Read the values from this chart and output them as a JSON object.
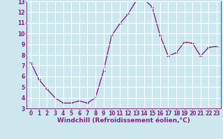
{
  "x": [
    0,
    1,
    2,
    3,
    4,
    5,
    6,
    7,
    8,
    9,
    10,
    11,
    12,
    13,
    14,
    15,
    16,
    17,
    18,
    19,
    20,
    21,
    22,
    23
  ],
  "y": [
    7.3,
    5.7,
    4.8,
    4.0,
    3.5,
    3.5,
    3.7,
    3.5,
    4.0,
    6.5,
    9.8,
    10.9,
    11.8,
    13.0,
    13.2,
    12.5,
    9.8,
    7.9,
    8.2,
    9.2,
    9.1,
    7.9,
    8.7,
    8.8
  ],
  "line_color": "#882288",
  "marker": "P",
  "marker_size": 2.5,
  "bg_color": "#cce8ee",
  "grid_color": "#b0d8e0",
  "xlabel": "Windchill (Refroidissement éolien,°C)",
  "xlabel_fontsize": 6.5,
  "tick_fontsize": 5.5,
  "ylim": [
    3,
    13
  ],
  "xlim": [
    -0.5,
    23.5
  ],
  "yticks": [
    3,
    4,
    5,
    6,
    7,
    8,
    9,
    10,
    11,
    12,
    13
  ],
  "xticks": [
    0,
    1,
    2,
    3,
    4,
    5,
    6,
    7,
    8,
    9,
    10,
    11,
    12,
    13,
    14,
    15,
    16,
    17,
    18,
    19,
    20,
    21,
    22,
    23
  ],
  "line_width": 1.0
}
